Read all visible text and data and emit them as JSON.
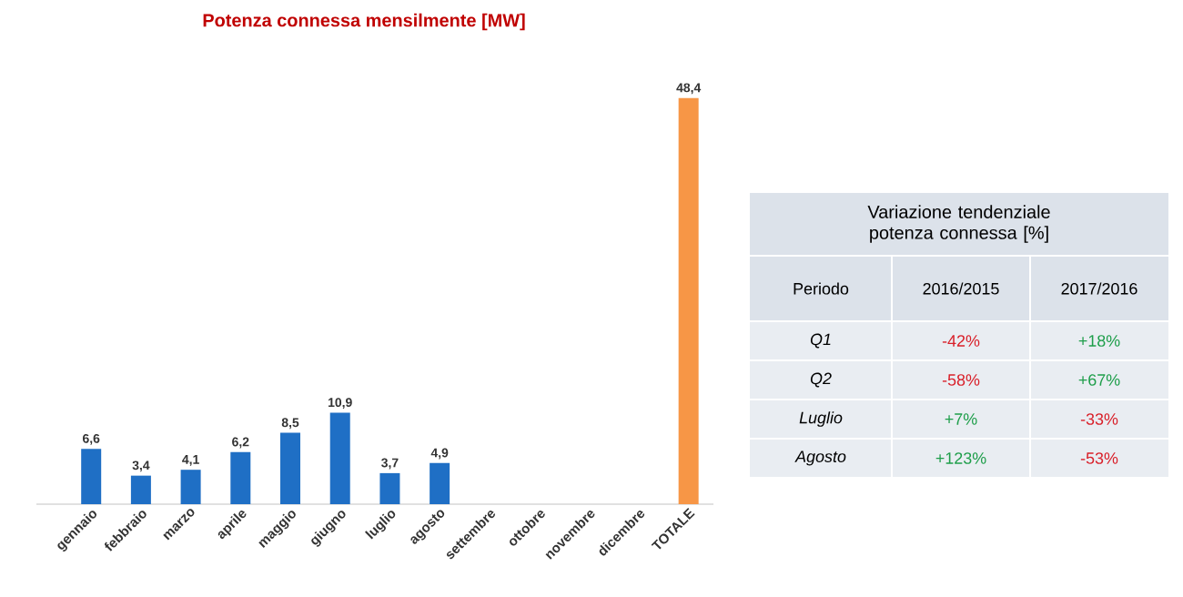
{
  "chart_data": [
    {
      "type": "bar",
      "title": "Potenza connessa mensilmente [MW]",
      "categories": [
        "gennaio",
        "febbraio",
        "marzo",
        "aprile",
        "maggio",
        "giugno",
        "luglio",
        "agosto",
        "settembre",
        "ottobre",
        "novembre",
        "dicembre",
        "TOTALE"
      ],
      "values": [
        6.6,
        3.4,
        4.1,
        6.2,
        8.5,
        10.9,
        3.7,
        4.9,
        null,
        null,
        null,
        null,
        48.4
      ],
      "value_labels": [
        "6,6",
        "3,4",
        "4,1",
        "6,2",
        "8,5",
        "10,9",
        "3,7",
        "4,9",
        null,
        null,
        null,
        null,
        "48,4"
      ],
      "colors": [
        "#1f6fc5",
        "#1f6fc5",
        "#1f6fc5",
        "#1f6fc5",
        "#1f6fc5",
        "#1f6fc5",
        "#1f6fc5",
        "#1f6fc5",
        "#1f6fc5",
        "#1f6fc5",
        "#1f6fc5",
        "#1f6fc5",
        "#f79646"
      ]
    },
    {
      "type": "other",
      "title": "Variazione tendenziale potenza connessa [%]",
      "annotations": [
        "Periodo",
        "2016/2015",
        "2017/2016",
        "Q1",
        "-42%",
        "+18%",
        "Q2",
        "-58%",
        "+67%",
        "Luglio",
        "+7%",
        "-33%",
        "Agosto",
        "+123%",
        "-53%"
      ]
    }
  ]
}
